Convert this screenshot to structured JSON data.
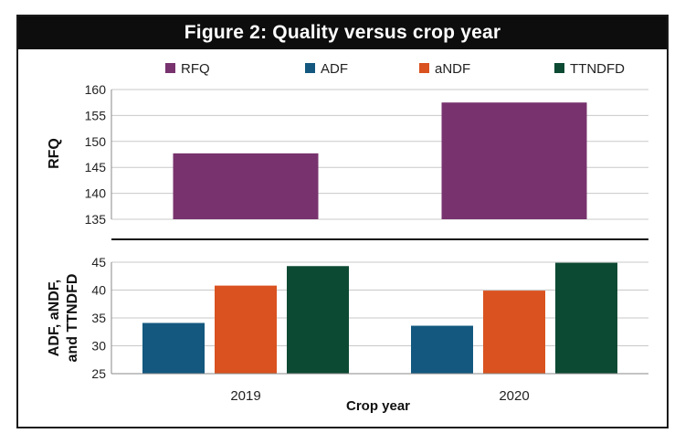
{
  "figure_title": "Figure 2: Quality versus crop year",
  "chart_data": [
    {
      "type": "bar",
      "categories": [
        "2019",
        "2020"
      ],
      "series": [
        {
          "name": "RFQ",
          "values": [
            147.7,
            157.5
          ]
        }
      ],
      "ylabel": "RFQ",
      "ylim": [
        135,
        160
      ],
      "yticks": [
        "160",
        "155",
        "150",
        "145",
        "140",
        "135"
      ],
      "grid": true,
      "legend_position": "top",
      "colors": {
        "RFQ": "#78336e"
      }
    },
    {
      "type": "bar",
      "categories": [
        "2019",
        "2020"
      ],
      "series": [
        {
          "name": "ADF",
          "values": [
            34.1,
            33.6
          ]
        },
        {
          "name": "aNDF",
          "values": [
            40.8,
            39.9
          ]
        },
        {
          "name": "TTNDFD",
          "values": [
            44.3,
            44.9
          ]
        }
      ],
      "xlabel": "Crop year",
      "ylabel": "ADF, aNDF, and TTNDFD",
      "ylabel_lines": [
        "ADF, aNDF,",
        "and TTNDFD"
      ],
      "ylim": [
        25,
        45
      ],
      "yticks": [
        "45",
        "40",
        "35",
        "30",
        "25"
      ],
      "grid": true,
      "colors": {
        "ADF": "#14587f",
        "aNDF": "#d9521f",
        "TTNDFD": "#0d4a33"
      }
    }
  ],
  "legend": [
    {
      "label": "RFQ",
      "color": "#78336e"
    },
    {
      "label": "ADF",
      "color": "#14587f"
    },
    {
      "label": "aNDF",
      "color": "#d9521f"
    },
    {
      "label": "TTNDFD",
      "color": "#0d4a33"
    }
  ]
}
